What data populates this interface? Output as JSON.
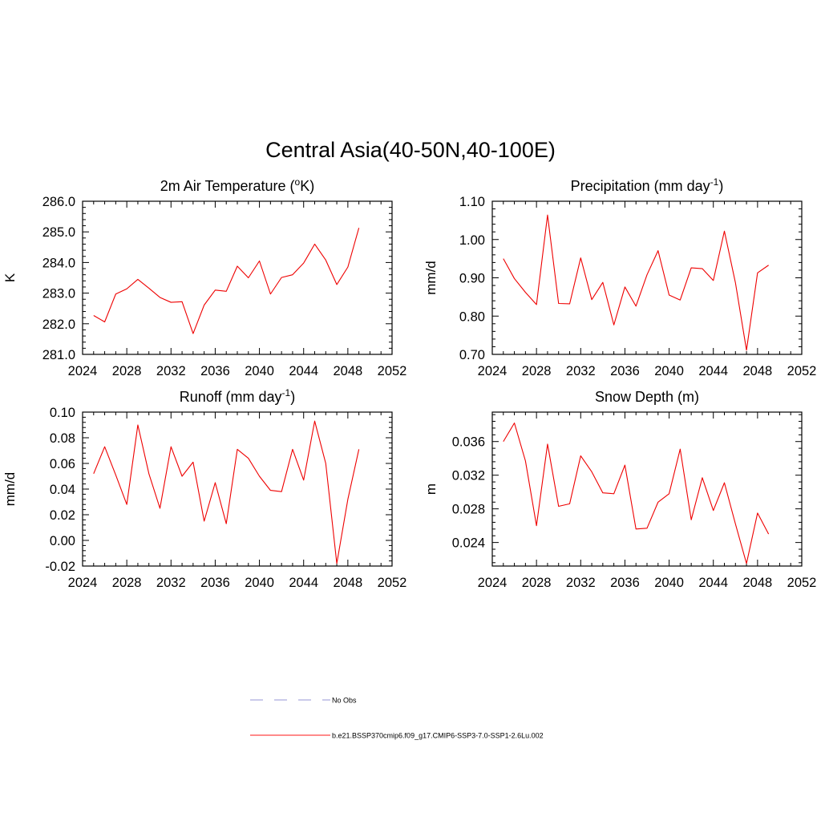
{
  "figure": {
    "title": "Central Asia(40-50N,40-100E)"
  },
  "chart_data": [
    {
      "type": "line",
      "title": "2m Air Temperature (°K)",
      "title_parts": {
        "pre": "2m Air Temperature (",
        "sup": "o",
        "post": "K)"
      },
      "xlabel": "",
      "ylabel": "K",
      "xlim": [
        2024,
        2052
      ],
      "ylim": [
        281.0,
        286.0
      ],
      "xticks": [
        2024,
        2028,
        2032,
        2036,
        2040,
        2044,
        2048,
        2052
      ],
      "xtick_labels": [
        "2024",
        "2028",
        "2032",
        "2036",
        "2040",
        "2044",
        "2048",
        "2052"
      ],
      "yticks": [
        281.0,
        282.0,
        283.0,
        284.0,
        285.0,
        286.0
      ],
      "ytick_labels": [
        "281.0",
        "282.0",
        "283.0",
        "284.0",
        "285.0",
        "286.0"
      ],
      "x": [
        2025,
        2026,
        2027,
        2028,
        2029,
        2030,
        2031,
        2032,
        2033,
        2034,
        2035,
        2036,
        2037,
        2038,
        2039,
        2040,
        2041,
        2042,
        2043,
        2044,
        2045,
        2046,
        2047,
        2048,
        2049
      ],
      "values": [
        282.27,
        282.06,
        282.97,
        283.14,
        283.45,
        283.16,
        282.86,
        282.7,
        282.72,
        281.68,
        282.61,
        283.1,
        283.06,
        283.88,
        283.5,
        284.05,
        282.97,
        283.51,
        283.6,
        283.98,
        284.6,
        284.08,
        283.28,
        283.85,
        285.13
      ]
    },
    {
      "type": "line",
      "title": "Precipitation (mm day-1)",
      "title_parts": {
        "pre": "Precipitation (mm day",
        "sup": "-1",
        "post": ")"
      },
      "xlabel": "",
      "ylabel": "mm/d",
      "xlim": [
        2024,
        2052
      ],
      "ylim": [
        0.7,
        1.1
      ],
      "xticks": [
        2024,
        2028,
        2032,
        2036,
        2040,
        2044,
        2048,
        2052
      ],
      "xtick_labels": [
        "2024",
        "2028",
        "2032",
        "2036",
        "2040",
        "2044",
        "2048",
        "2052"
      ],
      "yticks": [
        0.7,
        0.8,
        0.9,
        1.0,
        1.1
      ],
      "ytick_labels": [
        "0.70",
        "0.80",
        "0.90",
        "1.00",
        "1.10"
      ],
      "x": [
        2025,
        2026,
        2027,
        2028,
        2029,
        2030,
        2031,
        2032,
        2033,
        2034,
        2035,
        2036,
        2037,
        2038,
        2039,
        2040,
        2041,
        2042,
        2043,
        2044,
        2045,
        2046,
        2047,
        2048,
        2049
      ],
      "values": [
        0.95,
        0.898,
        0.862,
        0.83,
        1.064,
        0.833,
        0.832,
        0.952,
        0.843,
        0.888,
        0.777,
        0.876,
        0.826,
        0.908,
        0.971,
        0.855,
        0.842,
        0.926,
        0.924,
        0.893,
        1.022,
        0.887,
        0.711,
        0.913,
        0.933
      ]
    },
    {
      "type": "line",
      "title": "Runoff (mm day-1)",
      "title_parts": {
        "pre": "Runoff (mm day",
        "sup": "-1",
        "post": ")"
      },
      "xlabel": "",
      "ylabel": "mm/d",
      "xlim": [
        2024,
        2052
      ],
      "ylim": [
        -0.02,
        0.1
      ],
      "xticks": [
        2024,
        2028,
        2032,
        2036,
        2040,
        2044,
        2048,
        2052
      ],
      "xtick_labels": [
        "2024",
        "2028",
        "2032",
        "2036",
        "2040",
        "2044",
        "2048",
        "2052"
      ],
      "yticks": [
        -0.02,
        0.0,
        0.02,
        0.04,
        0.06,
        0.08,
        0.1
      ],
      "ytick_labels": [
        "-0.02",
        "0.00",
        "0.02",
        "0.04",
        "0.06",
        "0.08",
        "0.10"
      ],
      "x": [
        2025,
        2026,
        2027,
        2028,
        2029,
        2030,
        2031,
        2032,
        2033,
        2034,
        2035,
        2036,
        2037,
        2038,
        2039,
        2040,
        2041,
        2042,
        2043,
        2044,
        2045,
        2046,
        2047,
        2048,
        2049
      ],
      "values": [
        0.052,
        0.073,
        0.051,
        0.028,
        0.09,
        0.052,
        0.025,
        0.073,
        0.05,
        0.061,
        0.015,
        0.045,
        0.013,
        0.071,
        0.064,
        0.05,
        0.039,
        0.038,
        0.071,
        0.047,
        0.093,
        0.06,
        -0.018,
        0.032,
        0.071
      ]
    },
    {
      "type": "line",
      "title": "Snow Depth (m)",
      "title_parts": {
        "pre": "Snow Depth (m)",
        "sup": "",
        "post": ""
      },
      "xlabel": "",
      "ylabel": "m",
      "xlim": [
        2024,
        2052
      ],
      "ylim": [
        0.0212,
        0.0395
      ],
      "xticks": [
        2024,
        2028,
        2032,
        2036,
        2040,
        2044,
        2048,
        2052
      ],
      "xtick_labels": [
        "2024",
        "2028",
        "2032",
        "2036",
        "2040",
        "2044",
        "2048",
        "2052"
      ],
      "yticks": [
        0.024,
        0.028,
        0.032,
        0.036
      ],
      "ytick_labels": [
        "0.024",
        "0.028",
        "0.032",
        "0.036"
      ],
      "x": [
        2025,
        2026,
        2027,
        2028,
        2029,
        2030,
        2031,
        2032,
        2033,
        2034,
        2035,
        2036,
        2037,
        2038,
        2039,
        2040,
        2041,
        2042,
        2043,
        2044,
        2045,
        2046,
        2047,
        2048,
        2049
      ],
      "values": [
        0.036,
        0.0382,
        0.0337,
        0.026,
        0.0357,
        0.0283,
        0.0286,
        0.0343,
        0.0324,
        0.0299,
        0.0298,
        0.0332,
        0.0256,
        0.0257,
        0.0288,
        0.0298,
        0.0351,
        0.0267,
        0.0317,
        0.0278,
        0.0311,
        0.0262,
        0.0215,
        0.0275,
        0.025
      ]
    }
  ],
  "legend": [
    {
      "label": "No Obs",
      "color": "#aaaadd",
      "dash": "dashed"
    },
    {
      "label": "b.e21.BSSP370cmip6.f09_g17.CMIP6-SSP3-7.0-SSP1-2.6Lu.002",
      "color": "#ff4444",
      "dash": "solid"
    }
  ],
  "colors": {
    "series": "#ee0000",
    "axes": "#000000"
  }
}
